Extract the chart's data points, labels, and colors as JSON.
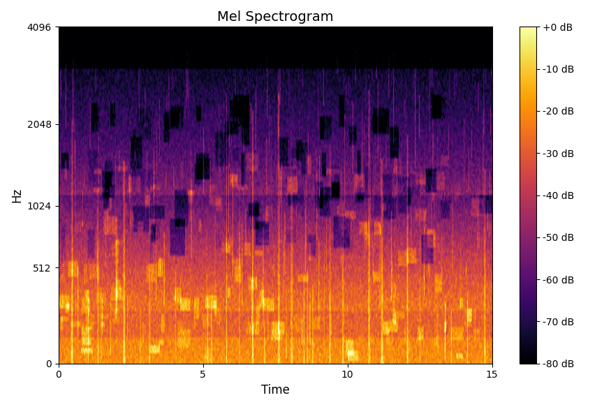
{
  "title": "Mel Spectrogram",
  "xlabel": "Time",
  "ylabel": "Hz",
  "x_min": 0,
  "x_max": 15,
  "x_ticks": [
    0,
    5,
    10,
    15
  ],
  "y_ticks": [
    0,
    512,
    1024,
    2048,
    4096
  ],
  "colorbar_ticks": [
    0,
    -10,
    -20,
    -30,
    -40,
    -50,
    -60,
    -70,
    -80
  ],
  "colorbar_ticklabels": [
    "+0 dB",
    "-10 dB",
    "-20 dB",
    "-30 dB",
    "-40 dB",
    "-50 dB",
    "-60 dB",
    "-70 dB",
    "-80 dB"
  ],
  "vmin": -80,
  "vmax": 0,
  "cmap": "inferno",
  "n_mels": 128,
  "n_frames": 640,
  "sr": 8192,
  "duration": 15,
  "seed": 42,
  "title_fontsize": 14,
  "label_fontsize": 12
}
